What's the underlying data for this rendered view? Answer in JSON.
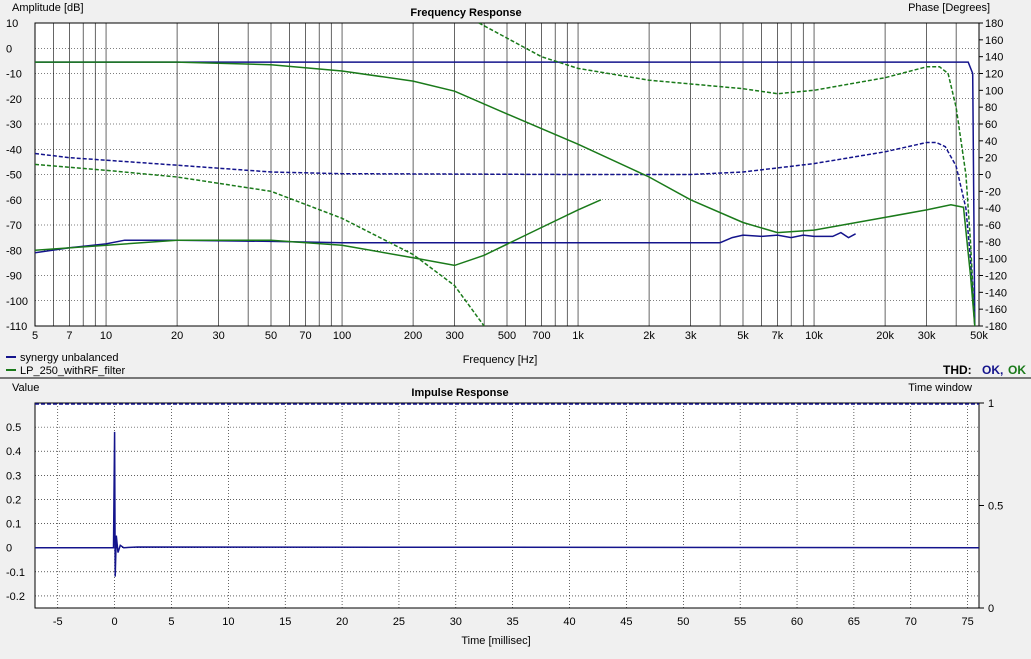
{
  "colors": {
    "series1": "#14148c",
    "series2": "#1a7a1a",
    "grid": "#000000",
    "background": "#ffffff",
    "panel": "#f0f0f0"
  },
  "thd": {
    "label": "THD:",
    "status1": "OK,",
    "status2": "OK"
  },
  "legend": [
    "synergy unbalanced",
    "LP_250_withRF_filter"
  ],
  "chart_data": [
    {
      "type": "line",
      "title": "Frequency Response",
      "xlabel": "Frequency [Hz]",
      "ylabel": "Amplitude [dB]",
      "y2label": "Phase [Degrees]",
      "xscale": "log",
      "xlim": [
        5,
        50000
      ],
      "ylim": [
        -110,
        10
      ],
      "y2lim": [
        -180,
        180
      ],
      "grid": true,
      "legend_position": "bottom-left",
      "x_ticks": [
        5,
        7,
        10,
        20,
        30,
        50,
        70,
        100,
        200,
        300,
        500,
        700,
        1000,
        2000,
        3000,
        5000,
        7000,
        10000,
        20000,
        30000,
        50000
      ],
      "x_tick_labels": [
        "5",
        "7",
        "10",
        "20",
        "30",
        "50",
        "70",
        "100",
        "200",
        "300",
        "500",
        "700",
        "1k",
        "2k",
        "3k",
        "5k",
        "7k",
        "10k",
        "20k",
        "30k",
        "50k"
      ],
      "y_ticks": [
        10,
        0,
        -10,
        -20,
        -30,
        -40,
        -50,
        -60,
        -70,
        -80,
        -90,
        -100,
        -110
      ],
      "y2_ticks": [
        180,
        160,
        140,
        120,
        100,
        80,
        60,
        40,
        20,
        0,
        -20,
        -40,
        -60,
        -80,
        -100,
        -120,
        -140,
        -160,
        -180
      ],
      "series": [
        {
          "name": "synergy unbalanced",
          "axis": "left",
          "style": "solid",
          "points": [
            [
              5,
              -5.5
            ],
            [
              100,
              -5.5
            ],
            [
              1000,
              -5.5
            ],
            [
              10000,
              -5.5
            ],
            [
              45000,
              -5.5
            ],
            [
              47000,
              -10
            ],
            [
              48000,
              -110
            ]
          ]
        },
        {
          "name": "synergy unbalanced",
          "axis": "left",
          "style": "solid",
          "points": [
            [
              5,
              -81
            ],
            [
              7,
              -79
            ],
            [
              10,
              -77.5
            ],
            [
              12,
              -76
            ],
            [
              20,
              -76
            ],
            [
              50,
              -76.5
            ],
            [
              100,
              -77
            ],
            [
              1000,
              -77
            ],
            [
              4000,
              -77
            ],
            [
              4500,
              -75
            ],
            [
              5000,
              -74
            ],
            [
              6000,
              -74.5
            ],
            [
              7000,
              -74
            ],
            [
              8000,
              -75
            ],
            [
              9000,
              -74
            ],
            [
              10000,
              -74.5
            ],
            [
              12000,
              -74.5
            ],
            [
              13000,
              -73
            ],
            [
              14000,
              -75
            ],
            [
              15000,
              -73.5
            ]
          ]
        },
        {
          "name": "synergy unbalanced",
          "axis": "right",
          "style": "dashed",
          "points": [
            [
              5,
              25
            ],
            [
              7,
              20
            ],
            [
              10,
              17
            ],
            [
              20,
              11
            ],
            [
              50,
              3
            ],
            [
              100,
              1
            ],
            [
              1000,
              0
            ],
            [
              3000,
              0
            ],
            [
              5000,
              3
            ],
            [
              10000,
              13
            ],
            [
              20000,
              27
            ],
            [
              30000,
              38
            ],
            [
              33000,
              38
            ],
            [
              36000,
              33
            ],
            [
              40000,
              10
            ],
            [
              44000,
              -40
            ],
            [
              46000,
              -100
            ],
            [
              48000,
              -180
            ]
          ]
        },
        {
          "name": "LP_250_withRF_filter",
          "axis": "left",
          "style": "solid",
          "points": [
            [
              5,
              -5.5
            ],
            [
              20,
              -5.5
            ],
            [
              50,
              -6.5
            ],
            [
              100,
              -9
            ],
            [
              200,
              -13
            ],
            [
              300,
              -17
            ],
            [
              500,
              -26
            ],
            [
              1000,
              -38
            ],
            [
              2000,
              -51
            ],
            [
              3000,
              -60
            ],
            [
              5000,
              -69
            ],
            [
              7000,
              -73
            ],
            [
              10000,
              -72
            ],
            [
              20000,
              -67
            ],
            [
              30000,
              -64
            ],
            [
              38000,
              -62
            ],
            [
              43000,
              -63
            ],
            [
              46000,
              -90
            ],
            [
              48000,
              -110
            ]
          ]
        },
        {
          "name": "LP_250_withRF_filter",
          "axis": "left",
          "style": "solid",
          "points": [
            [
              5,
              -80
            ],
            [
              20,
              -76
            ],
            [
              50,
              -76
            ],
            [
              100,
              -78
            ],
            [
              200,
              -83
            ],
            [
              300,
              -86
            ],
            [
              400,
              -82
            ],
            [
              700,
              -71
            ],
            [
              1000,
              -64
            ],
            [
              1250,
              -60
            ]
          ]
        },
        {
          "name": "LP_250_withRF_filter",
          "axis": "right",
          "style": "dashed",
          "points": [
            [
              380,
              180
            ],
            [
              500,
              162
            ],
            [
              700,
              140
            ],
            [
              1000,
              126
            ],
            [
              2000,
              112
            ],
            [
              5000,
              102
            ],
            [
              7000,
              96
            ],
            [
              10000,
              100
            ],
            [
              20000,
              115
            ],
            [
              30000,
              128
            ],
            [
              34000,
              128
            ],
            [
              37000,
              120
            ],
            [
              40000,
              80
            ],
            [
              44000,
              0
            ],
            [
              46000,
              -80
            ],
            [
              48000,
              -180
            ]
          ]
        },
        {
          "name": "LP_250_withRF_filter",
          "axis": "right",
          "style": "dashed",
          "points": [
            [
              5,
              12
            ],
            [
              10,
              5
            ],
            [
              20,
              -3
            ],
            [
              50,
              -20
            ],
            [
              100,
              -52
            ],
            [
              200,
              -95
            ],
            [
              300,
              -132
            ],
            [
              400,
              -180
            ]
          ]
        }
      ]
    },
    {
      "type": "line",
      "title": "Impulse Response",
      "xlabel": "Time [millisec]",
      "ylabel": "Value",
      "y2label": "Time window",
      "xlim": [
        -7,
        76
      ],
      "ylim": [
        -0.25,
        0.6
      ],
      "y2lim": [
        0,
        1
      ],
      "grid": true,
      "x_ticks": [
        -5,
        0,
        5,
        10,
        15,
        20,
        25,
        30,
        35,
        40,
        45,
        50,
        55,
        60,
        65,
        70,
        75
      ],
      "y_ticks": [
        0.5,
        0.4,
        0.3,
        0.2,
        0.1,
        0,
        -0.1,
        -0.2
      ],
      "y2_ticks": [
        1,
        0.5,
        0
      ],
      "series": [
        {
          "name": "synergy unbalanced",
          "axis": "left",
          "style": "solid",
          "points": [
            [
              -7,
              0
            ],
            [
              -0.1,
              0
            ],
            [
              0,
              0.48
            ],
            [
              0.05,
              -0.12
            ],
            [
              0.15,
              0.05
            ],
            [
              0.3,
              -0.02
            ],
            [
              0.5,
              0.01
            ],
            [
              0.8,
              0
            ],
            [
              2,
              0.003
            ],
            [
              76,
              0
            ]
          ]
        },
        {
          "name": "synergy unbalanced",
          "axis": "right",
          "style": "dashed",
          "points": [
            [
              -7,
              0.995
            ],
            [
              76,
              0.995
            ]
          ]
        }
      ]
    }
  ]
}
